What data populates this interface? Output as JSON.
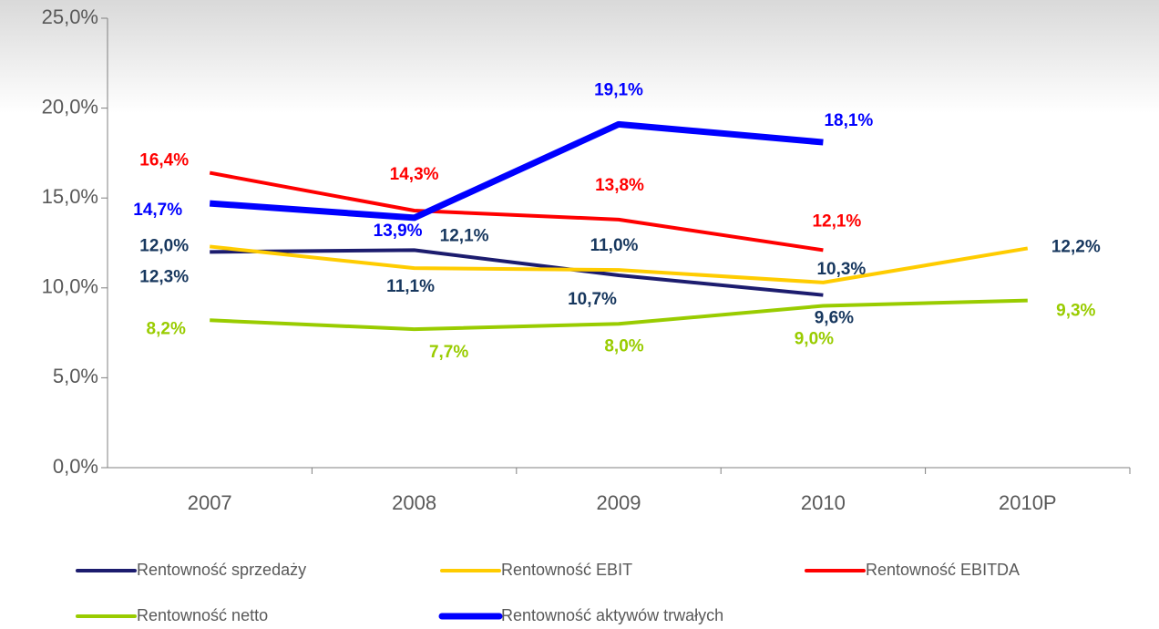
{
  "chart_data": {
    "type": "line",
    "categories": [
      "2007",
      "2008",
      "2009",
      "2010",
      "2010P"
    ],
    "ylim": [
      0,
      25
    ],
    "yticks": [
      {
        "value": 0,
        "label": "0,0%"
      },
      {
        "value": 5,
        "label": "5,0%"
      },
      {
        "value": 10,
        "label": "10,0%"
      },
      {
        "value": 15,
        "label": "15,0%"
      },
      {
        "value": 20,
        "label": "20,0%"
      },
      {
        "value": 25,
        "label": "25,0%"
      }
    ],
    "series": [
      {
        "name": "Rentowność sprzedaży",
        "color": "#1c1c6e",
        "label_color": "#17375e",
        "width": 4,
        "values": [
          12.0,
          12.1,
          10.7,
          9.6,
          null
        ],
        "value_labels": [
          "12,0%",
          "12,1%",
          "10,7%",
          "9,6%",
          null
        ]
      },
      {
        "name": "Rentowność EBIT",
        "color": "#ffcc00",
        "label_color": "#17375e",
        "width": 4,
        "values": [
          12.3,
          11.1,
          11.0,
          10.3,
          12.2
        ],
        "value_labels": [
          "12,3%",
          "11,1%",
          "11,0%",
          "10,3%",
          "12,2%"
        ]
      },
      {
        "name": "Rentowność EBITDA",
        "color": "#ff0000",
        "label_color": "#ff0000",
        "width": 4,
        "values": [
          16.4,
          14.3,
          13.8,
          12.1,
          null
        ],
        "value_labels": [
          "16,4%",
          "14,3%",
          "13,8%",
          "12,1%",
          null
        ]
      },
      {
        "name": "Rentowność netto",
        "color": "#99cc00",
        "label_color": "#99cc00",
        "width": 4,
        "values": [
          8.2,
          7.7,
          8.0,
          9.0,
          9.3
        ],
        "value_labels": [
          "8,2%",
          "7,7%",
          "8,0%",
          "9,0%",
          "9,3%"
        ]
      },
      {
        "name": "Rentowność aktywów trwałych",
        "color": "#0000ff",
        "label_color": "#0000ff",
        "width": 7,
        "values": [
          14.7,
          13.9,
          19.1,
          18.1,
          null
        ],
        "value_labels": [
          "14,7%",
          "13,9%",
          "19,1%",
          "18,1%",
          null
        ]
      }
    ]
  }
}
